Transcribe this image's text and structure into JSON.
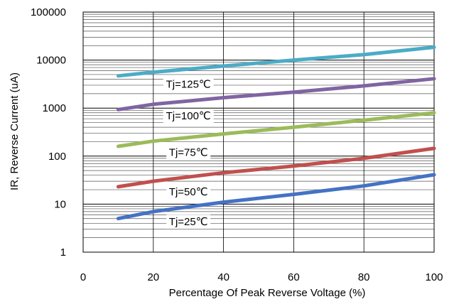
{
  "chart_data": {
    "type": "line",
    "xlabel": "Percentage Of Peak Reverse Voltage (%)",
    "ylabel": "IR, Reverse Current (uA)",
    "xlim": [
      0,
      100
    ],
    "ylim": [
      1,
      100000
    ],
    "yscale": "log",
    "xticks": [
      "0",
      "20",
      "40",
      "60",
      "80",
      "100"
    ],
    "yticks": [
      "1",
      "10",
      "100",
      "1000",
      "10000",
      "100000"
    ],
    "grid": true,
    "series": [
      {
        "name": "Tj=25℃",
        "color": "#4472c4",
        "x": [
          10,
          20,
          40,
          60,
          80,
          100
        ],
        "y": [
          5,
          7,
          11,
          16,
          24,
          41
        ]
      },
      {
        "name": "Tj=50℃",
        "color": "#c0504d",
        "x": [
          10,
          20,
          40,
          60,
          80,
          100
        ],
        "y": [
          23,
          30,
          45,
          62,
          90,
          145
        ]
      },
      {
        "name": "Tj=75℃",
        "color": "#9bbb59",
        "x": [
          10,
          20,
          40,
          60,
          80,
          100
        ],
        "y": [
          160,
          205,
          290,
          400,
          560,
          800
        ]
      },
      {
        "name": "Tj=100℃",
        "color": "#8064a2",
        "x": [
          10,
          20,
          40,
          60,
          80,
          100
        ],
        "y": [
          930,
          1200,
          1650,
          2150,
          2900,
          4100
        ]
      },
      {
        "name": "Tj=125℃",
        "color": "#4bacc6",
        "x": [
          10,
          20,
          40,
          60,
          80,
          100
        ],
        "y": [
          4700,
          5600,
          7500,
          10000,
          13000,
          18500
        ]
      }
    ]
  }
}
